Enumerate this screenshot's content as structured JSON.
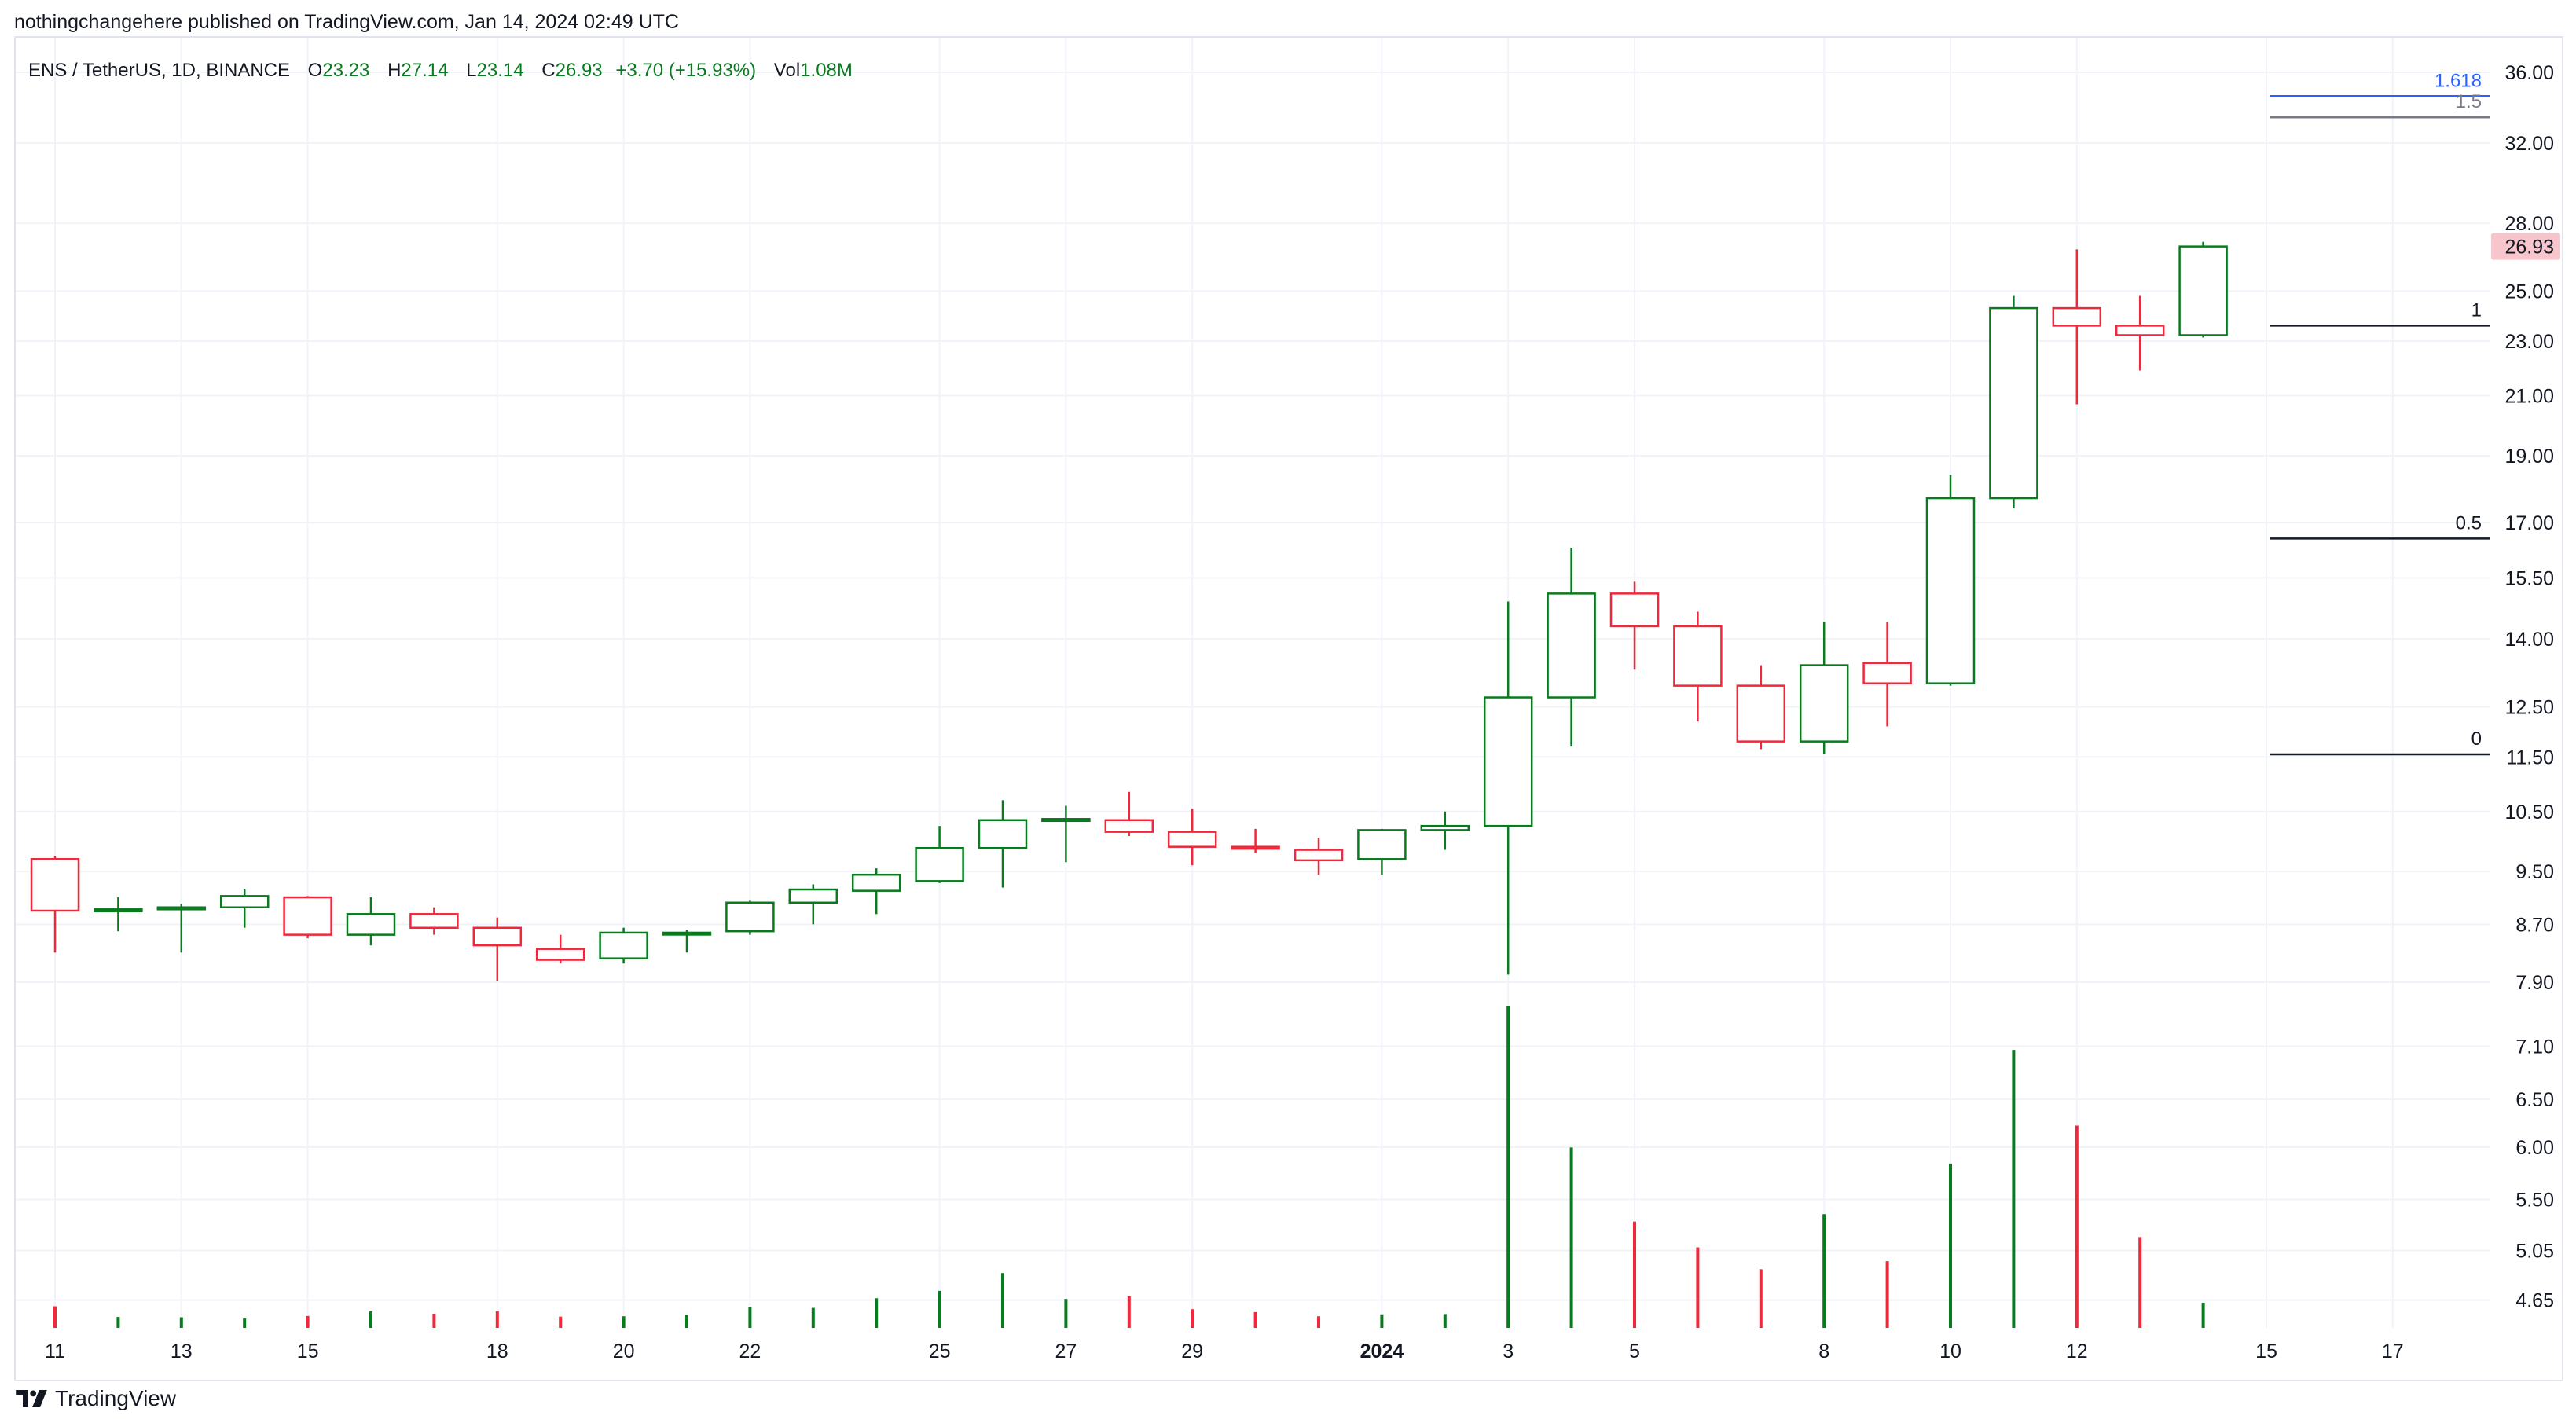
{
  "header": {
    "published": "nothingchangehere published on TradingView.com, Jan 14, 2024 02:49 UTC"
  },
  "legend": {
    "symbol": "ENS / TetherUS, 1D, BINANCE",
    "open_label": "O",
    "open": "23.23",
    "high_label": "H",
    "high": "27.14",
    "low_label": "L",
    "low": "23.14",
    "close_label": "C",
    "close": "26.93",
    "change": "+3.70 (+15.93%)",
    "vol_label": "Vol",
    "vol": "1.08M"
  },
  "footer": {
    "brand": "TradingView"
  },
  "colors": {
    "up": "#087b1e",
    "down": "#f0283c",
    "grid": "#f0f3fa",
    "last_price_bg": "#f7c6cc",
    "fib_top": "#2962ff"
  },
  "chart_data": {
    "type": "candlestick",
    "title": "",
    "xlabel": "",
    "ylabel": "",
    "y_scale": "log",
    "ylim": [
      4.45,
      37.5
    ],
    "y_ticks": [
      "36.00",
      "32.00",
      "28.00",
      "25.00",
      "23.00",
      "21.00",
      "19.00",
      "17.00",
      "15.50",
      "14.00",
      "12.50",
      "11.50",
      "10.50",
      "9.50",
      "8.70",
      "7.90",
      "7.10",
      "6.50",
      "6.00",
      "5.50",
      "5.05",
      "4.65"
    ],
    "x_ticks": [
      {
        "label": "11",
        "date": "2023-12-11"
      },
      {
        "label": "13",
        "date": "2023-12-13"
      },
      {
        "label": "15",
        "date": "2023-12-15"
      },
      {
        "label": "18",
        "date": "2023-12-18"
      },
      {
        "label": "20",
        "date": "2023-12-20"
      },
      {
        "label": "22",
        "date": "2023-12-22"
      },
      {
        "label": "25",
        "date": "2023-12-25"
      },
      {
        "label": "27",
        "date": "2023-12-27"
      },
      {
        "label": "29",
        "date": "2023-12-29"
      },
      {
        "label": "2024",
        "date": "2024-01-01",
        "bold": true
      },
      {
        "label": "3",
        "date": "2024-01-03"
      },
      {
        "label": "5",
        "date": "2024-01-05"
      },
      {
        "label": "8",
        "date": "2024-01-08"
      },
      {
        "label": "10",
        "date": "2024-01-10"
      },
      {
        "label": "12",
        "date": "2024-01-12"
      },
      {
        "label": "15",
        "date": "2024-01-15"
      },
      {
        "label": "17",
        "date": "2024-01-17"
      }
    ],
    "x_range": [
      "2023-12-11",
      "2024-01-17"
    ],
    "last_price": "26.93",
    "candles": [
      {
        "date": "2023-12-11",
        "o": 9.7,
        "h": 9.75,
        "l": 8.3,
        "c": 8.9
      },
      {
        "date": "2023-12-12",
        "o": 8.9,
        "h": 9.1,
        "l": 8.6,
        "c": 8.92
      },
      {
        "date": "2023-12-13",
        "o": 8.92,
        "h": 9.0,
        "l": 8.3,
        "c": 8.95
      },
      {
        "date": "2023-12-14",
        "o": 8.95,
        "h": 9.22,
        "l": 8.65,
        "c": 9.12
      },
      {
        "date": "2023-12-15",
        "o": 9.1,
        "h": 9.12,
        "l": 8.5,
        "c": 8.55
      },
      {
        "date": "2023-12-16",
        "o": 8.55,
        "h": 9.1,
        "l": 8.4,
        "c": 8.85
      },
      {
        "date": "2023-12-17",
        "o": 8.85,
        "h": 8.95,
        "l": 8.55,
        "c": 8.65
      },
      {
        "date": "2023-12-18",
        "o": 8.65,
        "h": 8.8,
        "l": 7.92,
        "c": 8.4
      },
      {
        "date": "2023-12-19",
        "o": 8.35,
        "h": 8.55,
        "l": 8.15,
        "c": 8.2
      },
      {
        "date": "2023-12-20",
        "o": 8.22,
        "h": 8.65,
        "l": 8.15,
        "c": 8.58
      },
      {
        "date": "2023-12-21",
        "o": 8.57,
        "h": 8.62,
        "l": 8.3,
        "c": 8.58
      },
      {
        "date": "2023-12-22",
        "o": 8.6,
        "h": 9.05,
        "l": 8.55,
        "c": 9.02
      },
      {
        "date": "2023-12-23",
        "o": 9.02,
        "h": 9.3,
        "l": 8.7,
        "c": 9.22
      },
      {
        "date": "2023-12-24",
        "o": 9.2,
        "h": 9.55,
        "l": 8.85,
        "c": 9.45
      },
      {
        "date": "2023-12-25",
        "o": 9.35,
        "h": 10.25,
        "l": 9.32,
        "c": 9.88
      },
      {
        "date": "2023-12-26",
        "o": 9.88,
        "h": 10.7,
        "l": 9.25,
        "c": 10.35
      },
      {
        "date": "2023-12-27",
        "o": 10.35,
        "h": 10.6,
        "l": 9.65,
        "c": 10.37
      },
      {
        "date": "2023-12-28",
        "o": 10.35,
        "h": 10.85,
        "l": 10.08,
        "c": 10.15
      },
      {
        "date": "2023-12-29",
        "o": 10.15,
        "h": 10.55,
        "l": 9.6,
        "c": 9.9
      },
      {
        "date": "2023-12-30",
        "o": 9.9,
        "h": 10.2,
        "l": 9.8,
        "c": 9.88
      },
      {
        "date": "2023-12-31",
        "o": 9.85,
        "h": 10.05,
        "l": 9.45,
        "c": 9.68
      },
      {
        "date": "2024-01-01",
        "o": 9.7,
        "h": 10.2,
        "l": 9.45,
        "c": 10.18
      },
      {
        "date": "2024-01-02",
        "o": 10.18,
        "h": 10.5,
        "l": 9.85,
        "c": 10.25
      },
      {
        "date": "2024-01-03",
        "o": 10.25,
        "h": 14.9,
        "l": 8.0,
        "c": 12.7
      },
      {
        "date": "2024-01-04",
        "o": 12.7,
        "h": 16.3,
        "l": 11.7,
        "c": 15.1
      },
      {
        "date": "2024-01-05",
        "o": 15.1,
        "h": 15.4,
        "l": 13.3,
        "c": 14.3
      },
      {
        "date": "2024-01-06",
        "o": 14.3,
        "h": 14.65,
        "l": 12.2,
        "c": 12.95
      },
      {
        "date": "2024-01-07",
        "o": 12.95,
        "h": 13.4,
        "l": 11.65,
        "c": 11.8
      },
      {
        "date": "2024-01-08",
        "o": 11.8,
        "h": 14.4,
        "l": 11.55,
        "c": 13.4
      },
      {
        "date": "2024-01-09",
        "o": 13.45,
        "h": 14.4,
        "l": 12.1,
        "c": 13.0
      },
      {
        "date": "2024-01-10",
        "o": 13.0,
        "h": 18.4,
        "l": 12.95,
        "c": 17.7
      },
      {
        "date": "2024-01-11",
        "o": 17.7,
        "h": 24.8,
        "l": 17.4,
        "c": 24.3
      },
      {
        "date": "2024-01-12",
        "o": 24.3,
        "h": 26.8,
        "l": 20.7,
        "c": 23.6
      },
      {
        "date": "2024-01-13",
        "o": 23.6,
        "h": 24.8,
        "l": 21.9,
        "c": 23.23
      },
      {
        "date": "2024-01-14",
        "o": 23.23,
        "h": 27.14,
        "l": 23.14,
        "c": 26.93
      }
    ],
    "volume_series": {
      "name": "Vol",
      "unit": "relative",
      "values": [
        0.067,
        0.034,
        0.033,
        0.029,
        0.037,
        0.051,
        0.044,
        0.052,
        0.035,
        0.036,
        0.04,
        0.065,
        0.062,
        0.092,
        0.115,
        0.17,
        0.09,
        0.098,
        0.058,
        0.049,
        0.036,
        0.042,
        0.043,
        1.0,
        0.56,
        0.33,
        0.25,
        0.182,
        0.353,
        0.207,
        0.51,
        0.863,
        0.628,
        0.282,
        0.078
      ]
    },
    "fib_levels": [
      {
        "label": "1.618",
        "value": 34.6,
        "color": "#2962ff"
      },
      {
        "label": "1.5",
        "value": 33.4,
        "color": "#787b86"
      },
      {
        "label": "1",
        "value": 23.6,
        "color": "#131722"
      },
      {
        "label": "0.5",
        "value": 16.55,
        "color": "#131722"
      },
      {
        "label": "0",
        "value": 11.55,
        "color": "#131722"
      }
    ]
  }
}
